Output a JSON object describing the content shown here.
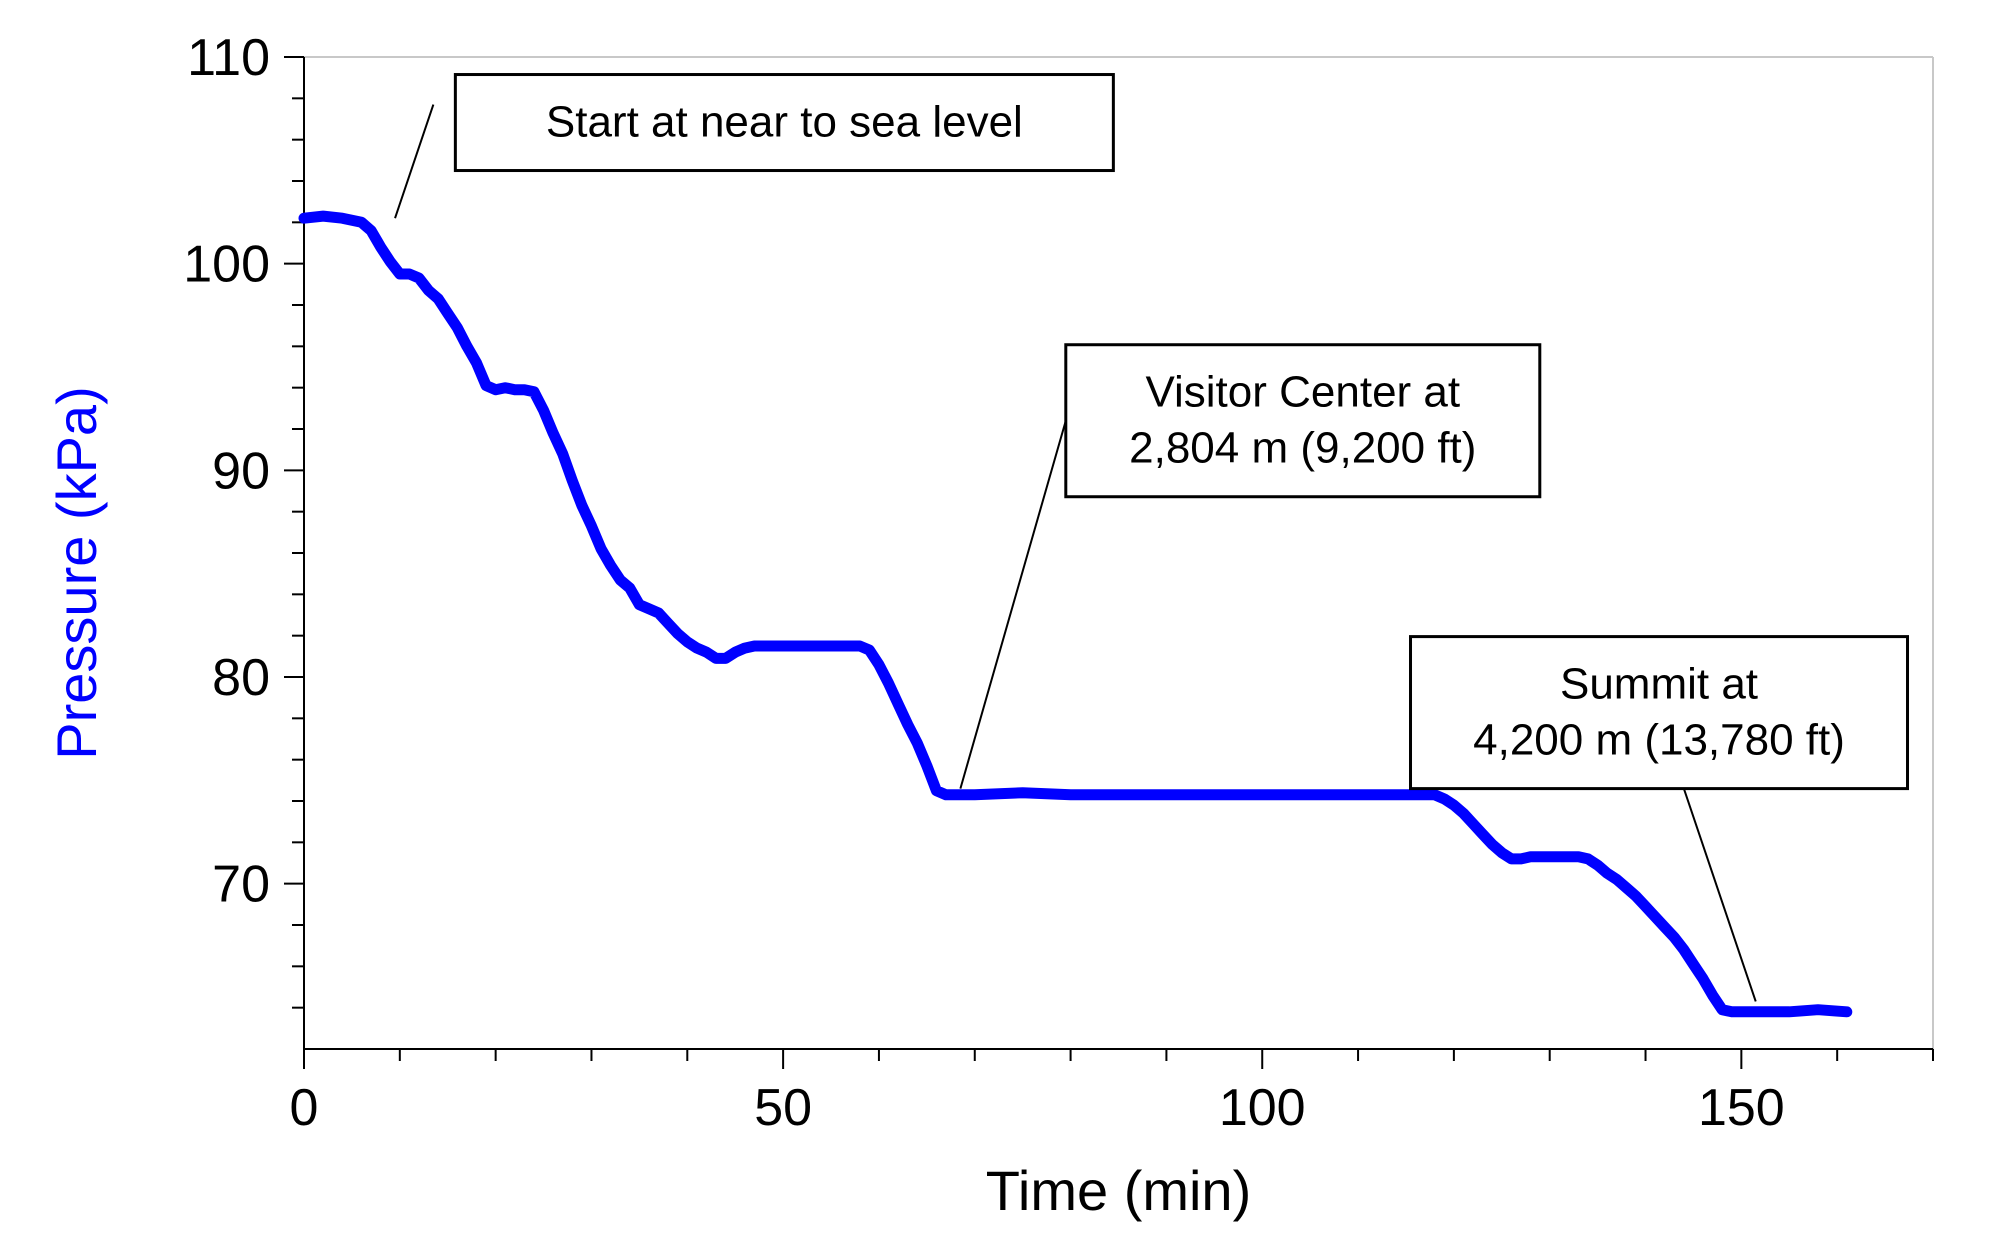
{
  "chart_data": {
    "type": "line",
    "title": "",
    "xlabel": "Time (min)",
    "ylabel": "Pressure (kPa)",
    "xlim": [
      0,
      170
    ],
    "ylim": [
      62,
      110
    ],
    "x_major_ticks": [
      0,
      50,
      100,
      150
    ],
    "x_minor_ticks": [
      10,
      20,
      30,
      40,
      60,
      70,
      80,
      90,
      110,
      120,
      130,
      140,
      160,
      170
    ],
    "y_major_ticks": [
      70,
      80,
      90,
      100,
      110
    ],
    "y_minor_ticks": [
      64,
      66,
      68,
      72,
      74,
      76,
      78,
      82,
      84,
      86,
      88,
      92,
      94,
      96,
      98,
      102,
      104,
      106,
      108
    ],
    "x_tick_labels": [
      "0",
      "50",
      "100",
      "150"
    ],
    "y_tick_labels": [
      "70",
      "80",
      "90",
      "100",
      "110"
    ],
    "grid": false,
    "colors": {
      "series": "#0000ff",
      "ylabel": "#0000ff",
      "axis": "#000000"
    },
    "series": [
      {
        "name": "Pressure",
        "x": [
          0,
          2,
          4,
          6,
          7,
          8,
          9,
          10,
          11,
          12,
          13,
          14,
          15,
          16,
          17,
          18,
          19,
          20,
          21,
          22,
          23,
          24,
          25,
          26,
          27,
          28,
          29,
          30,
          31,
          32,
          33,
          34,
          35,
          36,
          37,
          38,
          39,
          40,
          41,
          42,
          43,
          44,
          45,
          46,
          47,
          48,
          50,
          55,
          58,
          59,
          60,
          61,
          62,
          63,
          64,
          65,
          66,
          67,
          68,
          70,
          75,
          80,
          85,
          90,
          95,
          100,
          105,
          110,
          115,
          118,
          119,
          120,
          121,
          122,
          123,
          124,
          125,
          126,
          127,
          128,
          130,
          133,
          134,
          135,
          136,
          137,
          138,
          139,
          140,
          141,
          142,
          143,
          144,
          145,
          146,
          147,
          148,
          149,
          150,
          152,
          155,
          158,
          161
        ],
        "values": [
          102.2,
          102.3,
          102.2,
          102.0,
          101.6,
          100.8,
          100.1,
          99.5,
          99.5,
          99.3,
          98.7,
          98.3,
          97.6,
          96.9,
          96.0,
          95.2,
          94.1,
          93.9,
          94.0,
          93.9,
          93.9,
          93.8,
          92.9,
          91.8,
          90.8,
          89.5,
          88.3,
          87.3,
          86.2,
          85.4,
          84.7,
          84.3,
          83.5,
          83.3,
          83.1,
          82.6,
          82.1,
          81.7,
          81.4,
          81.2,
          80.9,
          80.9,
          81.2,
          81.4,
          81.5,
          81.5,
          81.5,
          81.5,
          81.5,
          81.3,
          80.6,
          79.7,
          78.7,
          77.7,
          76.8,
          75.7,
          74.5,
          74.3,
          74.3,
          74.3,
          74.4,
          74.3,
          74.3,
          74.3,
          74.3,
          74.3,
          74.3,
          74.3,
          74.3,
          74.3,
          74.1,
          73.8,
          73.4,
          72.9,
          72.4,
          71.9,
          71.5,
          71.2,
          71.2,
          71.3,
          71.3,
          71.3,
          71.2,
          70.9,
          70.5,
          70.2,
          69.8,
          69.4,
          68.9,
          68.4,
          67.9,
          67.4,
          66.8,
          66.1,
          65.4,
          64.6,
          63.9,
          63.8,
          63.8,
          63.8,
          63.8,
          63.9,
          63.8
        ]
      }
    ],
    "annotations": [
      {
        "id": "start",
        "lines": [
          "Start at near to sea level"
        ],
        "pointer_at": {
          "x": 9.5,
          "y": 102.2
        },
        "pointer_from": {
          "x": 13.5,
          "y": 107.7
        },
        "box_anchor": "upper-left"
      },
      {
        "id": "visitor-center",
        "lines": [
          "Visitor Center at",
          "2,804 m (9,200 ft)"
        ],
        "pointer_at": {
          "x": 68.5,
          "y": 74.6
        },
        "pointer_from": {
          "x": 79.5,
          "y": 92.4
        },
        "box_anchor": "middle-right"
      },
      {
        "id": "summit",
        "lines": [
          "Summit at",
          "4,200 m (13,780 ft)"
        ],
        "pointer_at": {
          "x": 151.5,
          "y": 64.3
        },
        "pointer_from": {
          "x": 144.0,
          "y": 74.6
        },
        "box_anchor": "lower-right"
      }
    ]
  }
}
